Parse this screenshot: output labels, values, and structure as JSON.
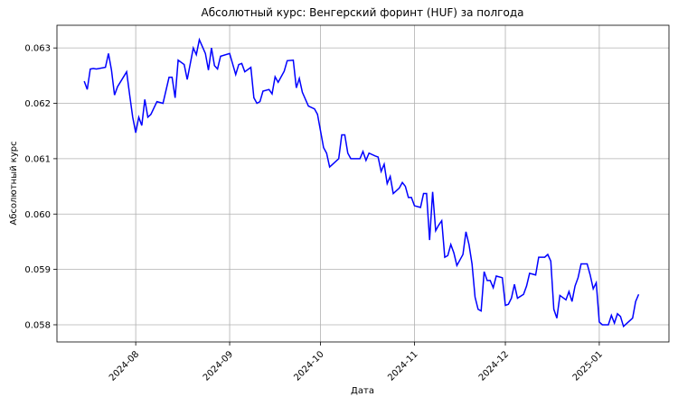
{
  "chart_data": {
    "type": "line",
    "title": "Абсолютный курс: Венгерский форинт (HUF) за полгода",
    "xlabel": "Дата",
    "ylabel": "Абсолютный курс",
    "grid": true,
    "label_color": "#0000ff",
    "xlim": [
      "2024-07-06",
      "2025-01-24"
    ],
    "ylim": [
      0.05769,
      0.06341
    ],
    "xticks": [
      {
        "value": "2024-08-01",
        "label": "2024-08"
      },
      {
        "value": "2024-09-01",
        "label": "2024-09"
      },
      {
        "value": "2024-10-01",
        "label": "2024-10"
      },
      {
        "value": "2024-11-01",
        "label": "2024-11"
      },
      {
        "value": "2024-12-01",
        "label": "2024-12"
      },
      {
        "value": "2025-01-01",
        "label": "2025-01"
      }
    ],
    "yticks": [
      0.058,
      0.059,
      {
        "value": 0.06,
        "label": "0.060"
      },
      0.061,
      0.062,
      0.063
    ],
    "x": [
      "2024-07-15",
      "2024-07-16",
      "2024-07-17",
      "2024-07-18",
      "2024-07-19",
      "2024-07-22",
      "2024-07-23",
      "2024-07-24",
      "2024-07-25",
      "2024-07-26",
      "2024-07-29",
      "2024-07-30",
      "2024-07-31",
      "2024-08-01",
      "2024-08-02",
      "2024-08-03",
      "2024-08-04",
      "2024-08-05",
      "2024-08-06",
      "2024-08-08",
      "2024-08-10",
      "2024-08-12",
      "2024-08-13",
      "2024-08-14",
      "2024-08-15",
      "2024-08-17",
      "2024-08-18",
      "2024-08-20",
      "2024-08-21",
      "2024-08-22",
      "2024-08-24",
      "2024-08-25",
      "2024-08-26",
      "2024-08-27",
      "2024-08-28",
      "2024-08-29",
      "2024-09-01",
      "2024-09-03",
      "2024-09-04",
      "2024-09-05",
      "2024-09-06",
      "2024-09-08",
      "2024-09-09",
      "2024-09-10",
      "2024-09-11",
      "2024-09-12",
      "2024-09-14",
      "2024-09-15",
      "2024-09-16",
      "2024-09-17",
      "2024-09-19",
      "2024-09-20",
      "2024-09-22",
      "2024-09-23",
      "2024-09-24",
      "2024-09-25",
      "2024-09-27",
      "2024-09-29",
      "2024-09-30",
      "2024-10-01",
      "2024-10-02",
      "2024-10-03",
      "2024-10-04",
      "2024-10-05",
      "2024-10-07",
      "2024-10-08",
      "2024-10-09",
      "2024-10-10",
      "2024-10-11",
      "2024-10-14",
      "2024-10-15",
      "2024-10-16",
      "2024-10-17",
      "2024-10-19",
      "2024-10-20",
      "2024-10-21",
      "2024-10-22",
      "2024-10-23",
      "2024-10-24",
      "2024-10-25",
      "2024-10-27",
      "2024-10-28",
      "2024-10-29",
      "2024-10-30",
      "2024-10-31",
      "2024-11-01",
      "2024-11-03",
      "2024-11-04",
      "2024-11-05",
      "2024-11-06",
      "2024-11-07",
      "2024-11-08",
      "2024-11-09",
      "2024-11-10",
      "2024-11-11",
      "2024-11-12",
      "2024-11-13",
      "2024-11-14",
      "2024-11-15",
      "2024-11-16",
      "2024-11-17",
      "2024-11-18",
      "2024-11-19",
      "2024-11-20",
      "2024-11-21",
      "2024-11-22",
      "2024-11-23",
      "2024-11-24",
      "2024-11-25",
      "2024-11-26",
      "2024-11-27",
      "2024-11-28",
      "2024-11-30",
      "2024-12-01",
      "2024-12-02",
      "2024-12-03",
      "2024-12-04",
      "2024-12-05",
      "2024-12-07",
      "2024-12-08",
      "2024-12-09",
      "2024-12-11",
      "2024-12-12",
      "2024-12-14",
      "2024-12-15",
      "2024-12-16",
      "2024-12-17",
      "2024-12-18",
      "2024-12-19",
      "2024-12-21",
      "2024-12-22",
      "2024-12-23",
      "2024-12-24",
      "2024-12-25",
      "2024-12-26",
      "2024-12-28",
      "2024-12-29",
      "2024-12-30",
      "2024-12-31",
      "2025-01-01",
      "2025-01-02",
      "2025-01-04",
      "2025-01-05",
      "2025-01-06",
      "2025-01-07",
      "2025-01-08",
      "2025-01-09",
      "2025-01-12",
      "2025-01-13",
      "2025-01-14"
    ],
    "series": [
      {
        "name": "HUF",
        "color": "#0000ff",
        "values": [
          0.0624,
          0.06225,
          0.06262,
          0.06263,
          0.06262,
          0.06265,
          0.0629,
          0.0626,
          0.06215,
          0.0623,
          0.06257,
          0.06215,
          0.06175,
          0.06147,
          0.06175,
          0.0616,
          0.06207,
          0.06175,
          0.0618,
          0.06203,
          0.062,
          0.06247,
          0.06247,
          0.0621,
          0.06278,
          0.0627,
          0.06243,
          0.063,
          0.06288,
          0.06315,
          0.0629,
          0.0626,
          0.063,
          0.06268,
          0.06262,
          0.06285,
          0.0629,
          0.06252,
          0.0627,
          0.06272,
          0.06257,
          0.06265,
          0.0621,
          0.062,
          0.06203,
          0.06222,
          0.06225,
          0.06217,
          0.06248,
          0.06238,
          0.06258,
          0.06277,
          0.06278,
          0.06228,
          0.06245,
          0.0622,
          0.06195,
          0.0619,
          0.0618,
          0.0615,
          0.0612,
          0.0611,
          0.06085,
          0.0609,
          0.061,
          0.06143,
          0.06143,
          0.0611,
          0.061,
          0.061,
          0.06113,
          0.06097,
          0.0611,
          0.06105,
          0.06103,
          0.06077,
          0.0609,
          0.06055,
          0.06068,
          0.06037,
          0.06047,
          0.06057,
          0.0605,
          0.0603,
          0.0603,
          0.06015,
          0.06012,
          0.06037,
          0.06037,
          0.05953,
          0.0604,
          0.0597,
          0.0598,
          0.05988,
          0.05922,
          0.05925,
          0.05945,
          0.0593,
          0.05907,
          0.05917,
          0.05927,
          0.05968,
          0.05945,
          0.0591,
          0.0585,
          0.05828,
          0.05825,
          0.05896,
          0.0588,
          0.0588,
          0.05867,
          0.05888,
          0.05885,
          0.05835,
          0.05837,
          0.05848,
          0.05873,
          0.05848,
          0.05855,
          0.0587,
          0.05893,
          0.0589,
          0.05922,
          0.05922,
          0.05927,
          0.05915,
          0.05828,
          0.05812,
          0.05853,
          0.05845,
          0.0586,
          0.05842,
          0.0587,
          0.05885,
          0.0591,
          0.0591,
          0.0589,
          0.05865,
          0.05876,
          0.05805,
          0.058,
          0.058,
          0.05817,
          0.05803,
          0.0582,
          0.05815,
          0.05797,
          0.05812,
          0.05842,
          0.05855
        ]
      }
    ]
  }
}
